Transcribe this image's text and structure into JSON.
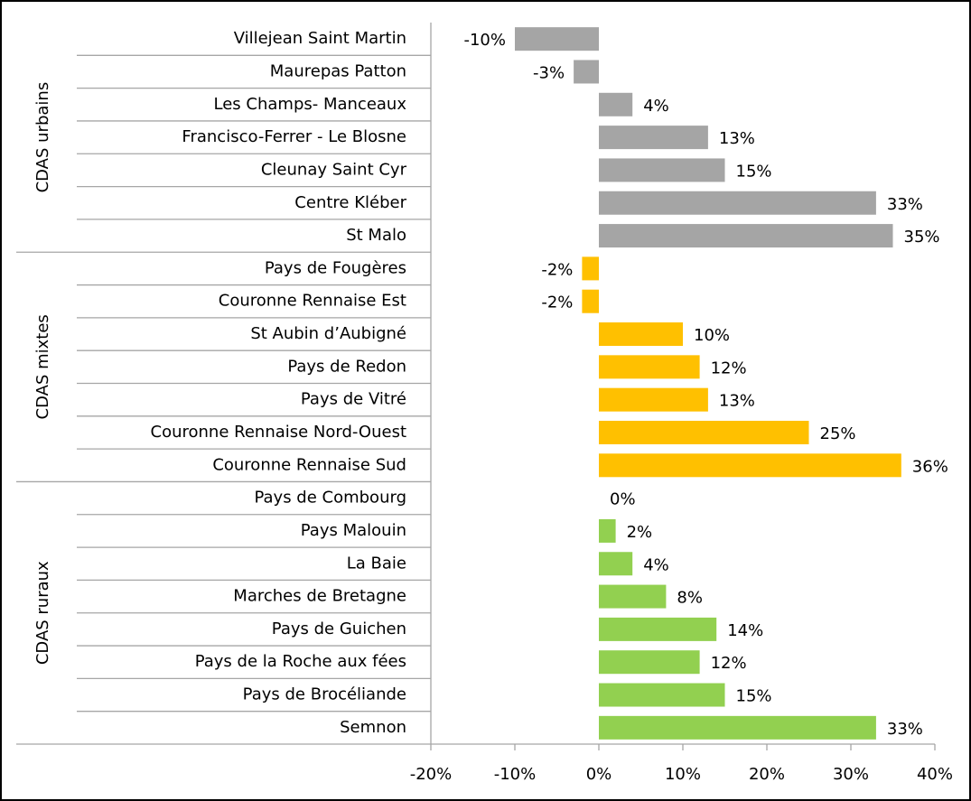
{
  "chart_data": {
    "type": "bar",
    "orientation": "horizontal",
    "groups": [
      {
        "name": "CDAS urbains",
        "color": "#a5a5a5",
        "categories": [
          "Villejean Saint Martin",
          "Maurepas Patton",
          "Les Champs- Manceaux",
          "Francisco-Ferrer - Le Blosne",
          "Cleunay Saint Cyr",
          "Centre Kléber",
          "St Malo"
        ],
        "values": [
          -10,
          -3,
          4,
          13,
          15,
          33,
          35
        ],
        "value_labels": [
          "-10%",
          "-3%",
          "4%",
          "13%",
          "15%",
          "33%",
          "35%"
        ]
      },
      {
        "name": "CDAS mixtes",
        "color": "#ffc000",
        "categories": [
          "Pays de Fougères",
          "Couronne Rennaise Est",
          "St Aubin d’Aubigné",
          "Pays de Redon",
          "Pays de Vitré",
          "Couronne Rennaise Nord-Ouest",
          "Couronne Rennaise Sud"
        ],
        "values": [
          -2,
          -2,
          10,
          12,
          13,
          25,
          36
        ],
        "value_labels": [
          "-2%",
          "-2%",
          "10%",
          "12%",
          "13%",
          "25%",
          "36%"
        ]
      },
      {
        "name": "CDAS ruraux",
        "color": "#92d050",
        "categories": [
          "Pays de Combourg",
          "Pays Malouin",
          "La Baie",
          "Marches de Bretagne",
          "Pays de Guichen",
          "Pays de  la Roche aux fées",
          "Pays de Brocéliande",
          "Semnon"
        ],
        "values": [
          0,
          2,
          4,
          8,
          14,
          12,
          15,
          33
        ],
        "value_labels": [
          "0%",
          "2%",
          "4%",
          "8%",
          "14%",
          "12%",
          "15%",
          "33%"
        ]
      }
    ],
    "xlim": [
      -20,
      40
    ],
    "xticks": [
      {
        "value": -20,
        "label": "-20%"
      },
      {
        "value": -10,
        "label": "-10%"
      },
      {
        "value": 0,
        "label": "0%"
      },
      {
        "value": 10,
        "label": "10%"
      },
      {
        "value": 20,
        "label": "20%"
      },
      {
        "value": 30,
        "label": "30%"
      },
      {
        "value": 40,
        "label": "40%"
      }
    ]
  }
}
